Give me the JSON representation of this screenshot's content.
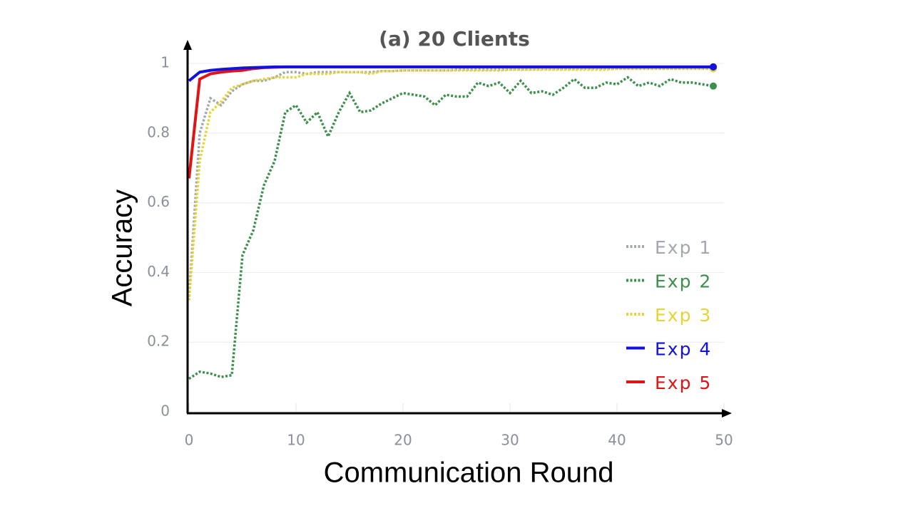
{
  "chart_data": {
    "type": "line",
    "title": "(a) 20 Clients",
    "x_label": "Communication Round",
    "y_label": "Accuracy",
    "x": [
      0,
      1,
      2,
      3,
      4,
      5,
      6,
      7,
      8,
      9,
      10,
      11,
      12,
      13,
      14,
      15,
      16,
      17,
      18,
      19,
      20,
      21,
      22,
      23,
      24,
      25,
      26,
      27,
      28,
      29,
      30,
      31,
      32,
      33,
      34,
      35,
      36,
      37,
      38,
      39,
      40,
      41,
      42,
      43,
      44,
      45,
      46,
      47,
      48,
      49
    ],
    "xlim": [
      0,
      50
    ],
    "xticks": [
      0,
      10,
      20,
      30,
      40,
      50
    ],
    "ylim": [
      0,
      1
    ],
    "yticks": [
      0,
      0.2,
      0.4,
      0.6,
      0.8,
      1
    ],
    "grid": true,
    "legend": "right",
    "series": [
      {
        "name": "Exp 1",
        "color": "#a3a7b0",
        "style": "dotted",
        "values": [
          0.33,
          0.8,
          0.9,
          0.88,
          0.92,
          0.94,
          0.95,
          0.95,
          0.96,
          0.975,
          0.975,
          0.97,
          0.975,
          0.975,
          0.975,
          0.975,
          0.975,
          0.975,
          0.978,
          0.978,
          0.98,
          0.98,
          0.98,
          0.98,
          0.98,
          0.982,
          0.982,
          0.982,
          0.982,
          0.982,
          0.983,
          0.983,
          0.983,
          0.984,
          0.984,
          0.984,
          0.984,
          0.985,
          0.985,
          0.985,
          0.985,
          0.985,
          0.985,
          0.985,
          0.985,
          0.985,
          0.985,
          0.985,
          0.985,
          0.985
        ]
      },
      {
        "name": "Exp 2",
        "color": "#3d8f4c",
        "style": "dotted",
        "values": [
          0.095,
          0.115,
          0.11,
          0.1,
          0.105,
          0.45,
          0.52,
          0.65,
          0.72,
          0.86,
          0.88,
          0.83,
          0.86,
          0.79,
          0.86,
          0.915,
          0.86,
          0.865,
          0.885,
          0.9,
          0.915,
          0.91,
          0.905,
          0.88,
          0.91,
          0.905,
          0.905,
          0.945,
          0.935,
          0.945,
          0.915,
          0.95,
          0.915,
          0.92,
          0.91,
          0.93,
          0.955,
          0.93,
          0.93,
          0.945,
          0.94,
          0.96,
          0.935,
          0.945,
          0.935,
          0.955,
          0.945,
          0.945,
          0.94,
          0.935
        ]
      },
      {
        "name": "Exp 3",
        "color": "#e5d534",
        "style": "dotted",
        "values": [
          0.32,
          0.72,
          0.86,
          0.89,
          0.93,
          0.94,
          0.95,
          0.955,
          0.96,
          0.96,
          0.96,
          0.97,
          0.97,
          0.97,
          0.975,
          0.975,
          0.975,
          0.97,
          0.978,
          0.978,
          0.98,
          0.98,
          0.98,
          0.98,
          0.98,
          0.98,
          0.98,
          0.98,
          0.98,
          0.98,
          0.982,
          0.982,
          0.982,
          0.982,
          0.982,
          0.982,
          0.982,
          0.982,
          0.982,
          0.982,
          0.985,
          0.985,
          0.985,
          0.985,
          0.985,
          0.985,
          0.985,
          0.985,
          0.985,
          0.985
        ]
      },
      {
        "name": "Exp 4",
        "color": "#1212e0",
        "style": "solid",
        "values": [
          0.95,
          0.975,
          0.98,
          0.983,
          0.985,
          0.987,
          0.988,
          0.989,
          0.99,
          0.99,
          0.99,
          0.99,
          0.99,
          0.99,
          0.99,
          0.99,
          0.99,
          0.99,
          0.99,
          0.99,
          0.99,
          0.99,
          0.99,
          0.99,
          0.99,
          0.99,
          0.99,
          0.99,
          0.99,
          0.99,
          0.99,
          0.99,
          0.99,
          0.99,
          0.99,
          0.99,
          0.99,
          0.99,
          0.99,
          0.99,
          0.99,
          0.99,
          0.99,
          0.99,
          0.99,
          0.99,
          0.99,
          0.99,
          0.99,
          0.99
        ]
      },
      {
        "name": "Exp 5",
        "color": "#e01414",
        "style": "solid",
        "values": [
          0.67,
          0.955,
          0.97,
          0.975,
          0.978,
          0.98,
          0.985,
          0.988,
          0.989,
          0.99,
          0.99,
          0.99,
          0.99,
          0.99,
          0.99,
          0.99,
          0.99,
          0.99,
          0.99,
          0.99,
          0.99,
          0.99,
          0.99,
          0.99,
          0.99,
          0.99,
          0.99,
          0.99,
          0.99,
          0.99,
          0.99,
          0.99,
          0.99,
          0.99,
          0.99,
          0.99,
          0.99,
          0.99,
          0.99,
          0.99,
          0.99,
          0.99,
          0.99,
          0.99,
          0.99,
          0.99,
          0.99,
          0.99,
          0.99,
          0.99
        ]
      }
    ]
  }
}
